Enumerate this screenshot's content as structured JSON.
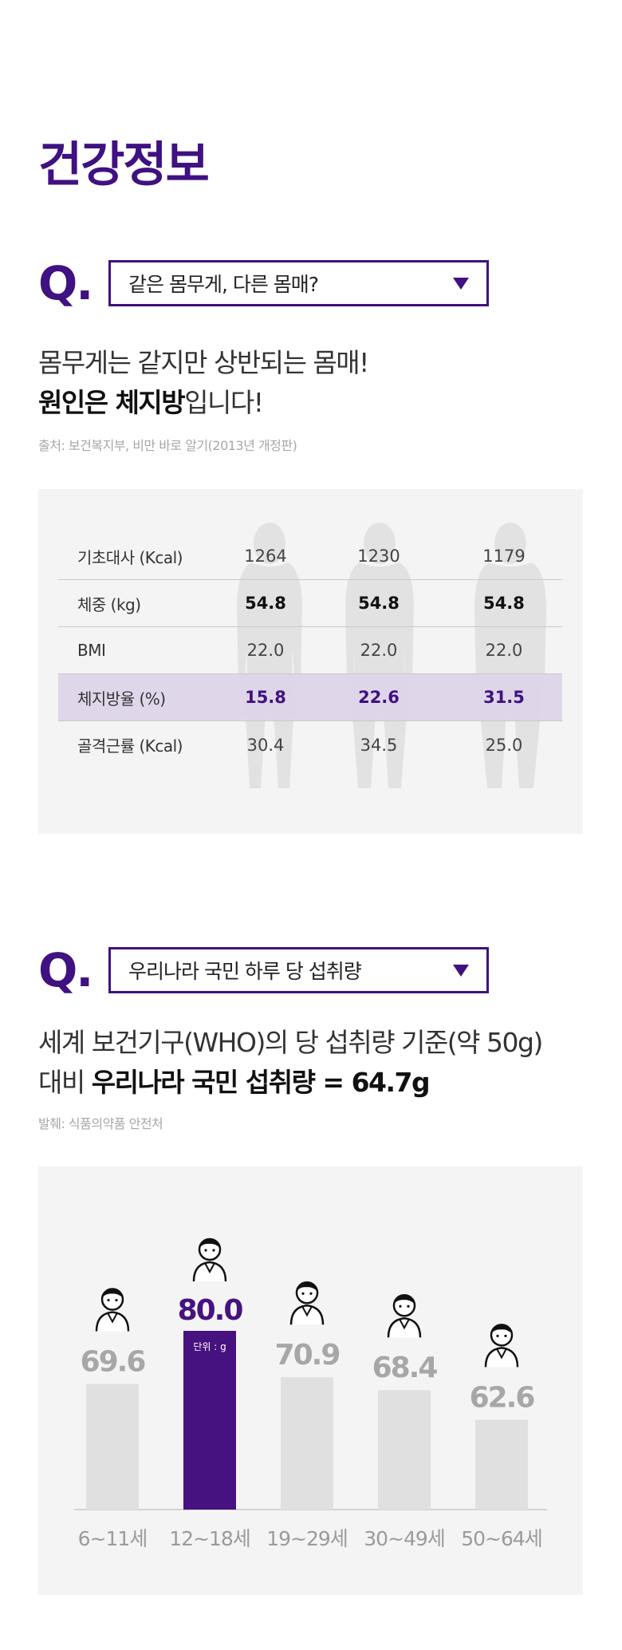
{
  "page": {
    "title": "건강정보"
  },
  "section1": {
    "q_mark": "Q.",
    "select_value": "같은 몸무게, 다른 몸매?",
    "lead_line1": "몸무게는 같지만 상반되는 몸매!",
    "lead_line2_bold": "원인은 체지방",
    "lead_line2_rest": "입니다!",
    "source": "출처: 보건복지부, 비만 바로 알기(2013년 개정판)",
    "table": {
      "rows": [
        {
          "label": "기초대사 (Kcal)",
          "values": [
            "1264",
            "1230",
            "1179"
          ]
        },
        {
          "label": "체중 (kg)",
          "values": [
            "54.8",
            "54.8",
            "54.8"
          ]
        },
        {
          "label": "BMI",
          "values": [
            "22.0",
            "22.0",
            "22.0"
          ]
        },
        {
          "label": "체지방율 (%)",
          "values": [
            "15.8",
            "22.6",
            "31.5"
          ]
        },
        {
          "label": "골격근률 (Kcal)",
          "values": [
            "30.4",
            "34.5",
            "25.0"
          ]
        }
      ]
    }
  },
  "section2": {
    "q_mark": "Q.",
    "select_value": "우리나라 국민 하루 당 섭취량",
    "lead_line1": "세계 보건기구(WHO)의 당 섭취량 기준(약 50g)",
    "lead_line2_prefix": "대비 ",
    "lead_line2_bold": "우리나라 국민 섭취량 = 64.7g",
    "source": "발췌: 식품의약품 안전처",
    "unit_label": "단위 : g"
  },
  "chart_data": {
    "type": "bar",
    "categories": [
      "6~11세",
      "12~18세",
      "19~29세",
      "30~49세",
      "50~64세"
    ],
    "values": [
      69.6,
      80.0,
      70.9,
      68.4,
      62.6
    ],
    "highlight_index": 1,
    "colors": {
      "default_bar": "#e0e0e0",
      "highlight_bar": "#46127f",
      "default_label": "#a7a7a7",
      "highlight_label": "#46127f",
      "axis": "#c8c8c8"
    },
    "icons": [
      "child-icon",
      "teen-boy-icon",
      "young-woman-icon",
      "bearded-man-icon",
      "older-woman-icon"
    ],
    "title": "",
    "xlabel": "",
    "ylabel": "",
    "unit": "g",
    "grid": false
  }
}
